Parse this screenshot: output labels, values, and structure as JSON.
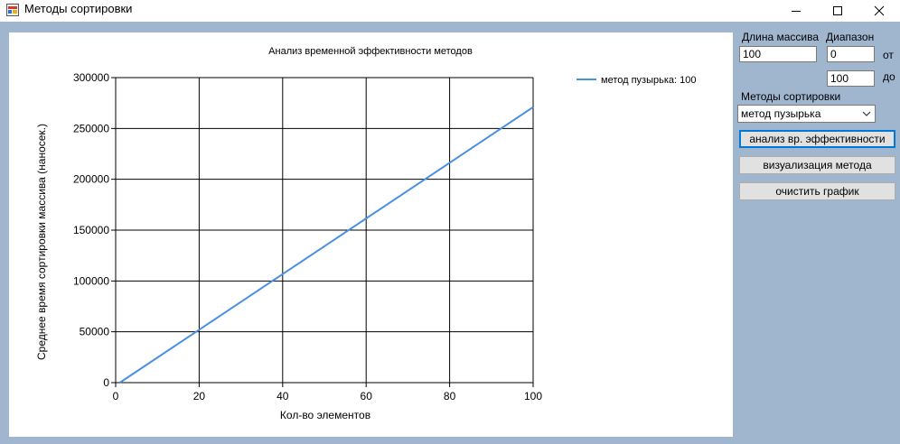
{
  "window": {
    "title": "Методы сортировки"
  },
  "chart_data": {
    "type": "line",
    "title": "Анализ временной эффективности методов",
    "xlabel": "Кол-во элементов",
    "ylabel": "Среднее время сортировки массива (наносек.)",
    "xlim": [
      0,
      100
    ],
    "ylim": [
      0,
      300000
    ],
    "xticks": [
      0,
      20,
      40,
      60,
      80,
      100
    ],
    "yticks": [
      0,
      50000,
      100000,
      150000,
      200000,
      250000,
      300000
    ],
    "grid": true,
    "legend_position": "top-right",
    "series": [
      {
        "name": "метод пузырька: 100",
        "color": "#4a90e2",
        "x": [
          1,
          100
        ],
        "y": [
          0,
          271000
        ]
      }
    ]
  },
  "panel": {
    "array_length_label": "Длина массива",
    "array_length_value": "100",
    "range_label": "Диапазон",
    "range_from_value": "0",
    "range_from_label": "от",
    "range_to_value": "100",
    "range_to_label": "до",
    "methods_label": "Методы сортировки",
    "method_selected": "метод пузырька",
    "btn_analysis": "анализ вр. эффективности",
    "btn_visualize": "визуализация метода",
    "btn_clear": "очистить график"
  },
  "colors": {
    "client_background": "#a0b6cf",
    "default_button_border": "#0078d7"
  }
}
